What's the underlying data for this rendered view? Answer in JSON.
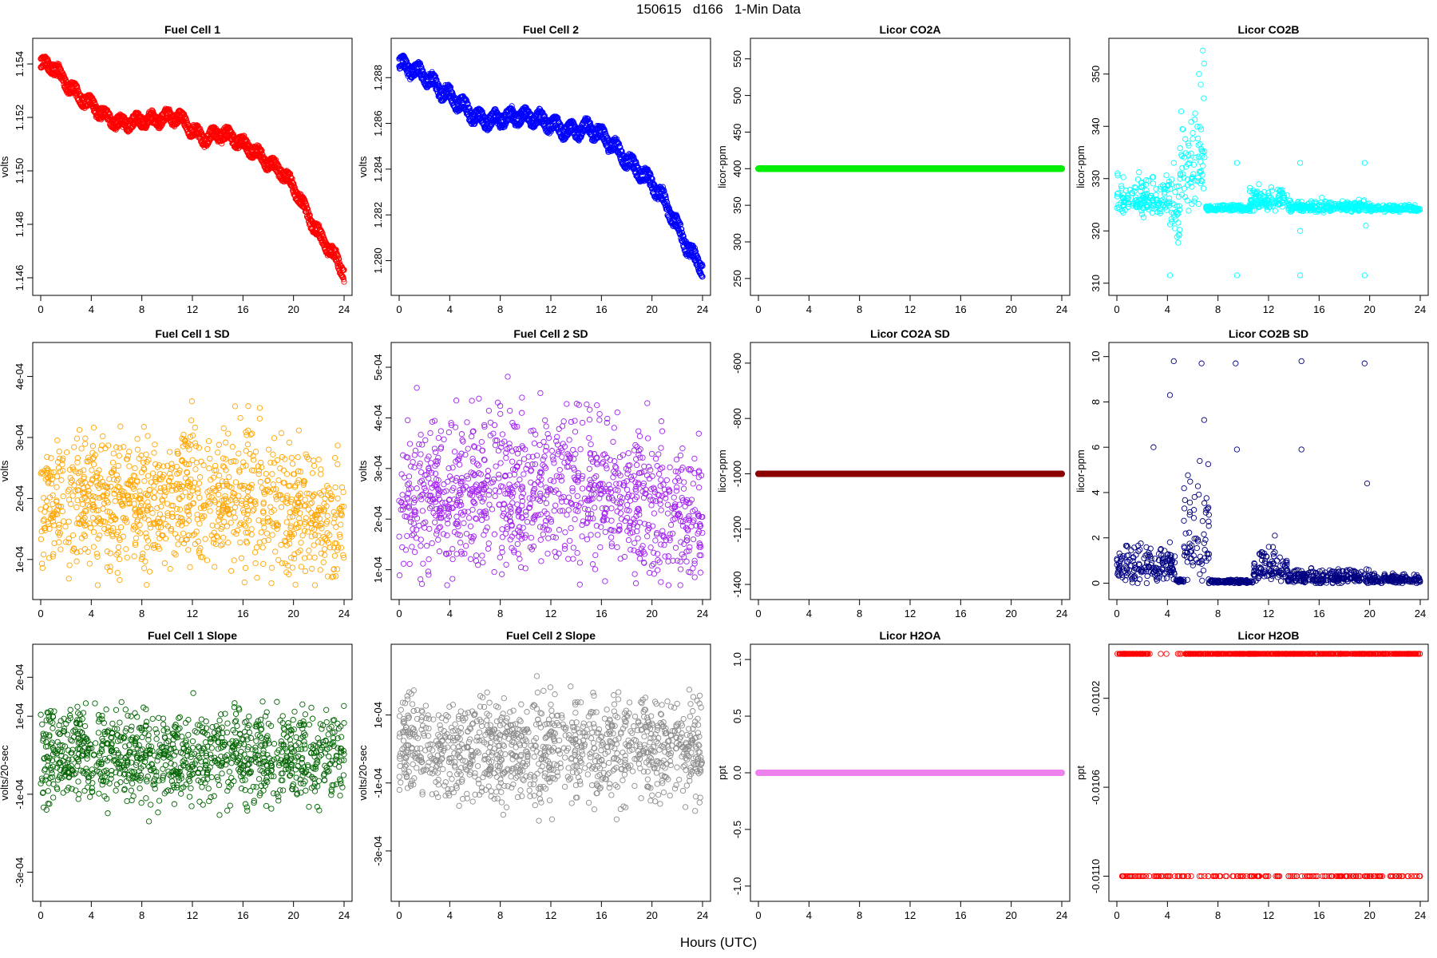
{
  "page_title": "150615   d166   1-Min Data",
  "x_axis_label": "Hours (UTC)",
  "chart_data": [
    {
      "type": "scatter",
      "title": "Fuel Cell 1",
      "ylabel": "volts",
      "xlim": [
        0,
        24
      ],
      "ylim": [
        1.1457,
        1.1546
      ],
      "yticks": [
        1.146,
        1.148,
        1.15,
        1.152,
        1.154
      ],
      "ytick_labels": [
        "1.146",
        "1.148",
        "1.150",
        "1.152",
        "1.154"
      ],
      "xticks": [
        0,
        4,
        8,
        12,
        16,
        20,
        24
      ],
      "color": "#ff0000",
      "filled": false,
      "band": true,
      "band_offset": 0.0003,
      "curve": [
        [
          0,
          1.154
        ],
        [
          1,
          1.1539
        ],
        [
          2,
          1.1533
        ],
        [
          3,
          1.1528
        ],
        [
          4,
          1.1525
        ],
        [
          5,
          1.1521
        ],
        [
          6,
          1.1518
        ],
        [
          7,
          1.1518
        ],
        [
          8,
          1.1519
        ],
        [
          9,
          1.1519
        ],
        [
          10,
          1.152
        ],
        [
          11,
          1.152
        ],
        [
          12,
          1.1515
        ],
        [
          13,
          1.1512
        ],
        [
          14,
          1.1514
        ],
        [
          15,
          1.1513
        ],
        [
          16,
          1.151
        ],
        [
          17,
          1.1507
        ],
        [
          18,
          1.1503
        ],
        [
          19,
          1.15
        ],
        [
          20,
          1.1494
        ],
        [
          21,
          1.1485
        ],
        [
          22,
          1.1476
        ],
        [
          23,
          1.147
        ],
        [
          24,
          1.1462
        ]
      ],
      "noise": 0.00015,
      "n": 720
    },
    {
      "type": "scatter",
      "title": "Fuel Cell 2",
      "ylabel": "volts",
      "xlim": [
        0,
        24
      ],
      "ylim": [
        1.2789,
        1.2893
      ],
      "yticks": [
        1.28,
        1.282,
        1.284,
        1.286,
        1.288
      ],
      "ytick_labels": [
        "1.280",
        "1.282",
        "1.284",
        "1.286",
        "1.288"
      ],
      "xticks": [
        0,
        4,
        8,
        12,
        16,
        20,
        24
      ],
      "color": "#0000ff",
      "filled": false,
      "band": true,
      "band_offset": 0.0004,
      "curve": [
        [
          0,
          1.2886
        ],
        [
          1,
          1.2884
        ],
        [
          2,
          1.2881
        ],
        [
          3,
          1.2876
        ],
        [
          4,
          1.2872
        ],
        [
          5,
          1.2868
        ],
        [
          6,
          1.2863
        ],
        [
          7,
          1.2861
        ],
        [
          8,
          1.2862
        ],
        [
          9,
          1.2863
        ],
        [
          10,
          1.2863
        ],
        [
          11,
          1.2862
        ],
        [
          12,
          1.286
        ],
        [
          13,
          1.2857
        ],
        [
          14,
          1.2857
        ],
        [
          15,
          1.2858
        ],
        [
          16,
          1.2855
        ],
        [
          17,
          1.285
        ],
        [
          18,
          1.2844
        ],
        [
          19,
          1.2839
        ],
        [
          20,
          1.2834
        ],
        [
          21,
          1.2826
        ],
        [
          22,
          1.2815
        ],
        [
          23,
          1.2804
        ],
        [
          24,
          1.2797
        ]
      ],
      "noise": 0.0002,
      "n": 720
    },
    {
      "type": "scatter",
      "title": "Licor CO2A",
      "ylabel": "licor-ppm",
      "xlim": [
        0,
        24
      ],
      "ylim": [
        240,
        565
      ],
      "yticks": [
        250,
        300,
        350,
        400,
        450,
        500,
        550
      ],
      "ytick_labels": [
        "250",
        "300",
        "350",
        "400",
        "450",
        "500",
        "550"
      ],
      "xticks": [
        0,
        4,
        8,
        12,
        16,
        20,
        24
      ],
      "color": "#00ee00",
      "constant": 400,
      "n": 1440
    },
    {
      "type": "scatter",
      "title": "Licor CO2B",
      "ylabel": "licor-ppm",
      "xlim": [
        0,
        24
      ],
      "ylim": [
        309.5,
        355
      ],
      "yticks": [
        310,
        320,
        330,
        340,
        350
      ],
      "ytick_labels": [
        "310",
        "320",
        "330",
        "340",
        "350"
      ],
      "xticks": [
        0,
        4,
        8,
        12,
        16,
        20,
        24
      ],
      "color": "#00ffff",
      "filled": false,
      "segments": [
        {
          "x0": 0,
          "x1": 4.2,
          "y": 326,
          "noise": 2.2
        },
        {
          "x0": 4.2,
          "x1": 5,
          "y": 324,
          "noise": 4
        },
        {
          "x0": 5,
          "x1": 7,
          "y": 332,
          "noise": 6
        },
        {
          "x0": 7,
          "x1": 10.5,
          "y": 324.3,
          "noise": 0.4
        },
        {
          "x0": 10.5,
          "x1": 13.5,
          "y": 325.5,
          "noise": 1.3
        },
        {
          "x0": 13.5,
          "x1": 20,
          "y": 324.5,
          "noise": 0.7
        },
        {
          "x0": 20,
          "x1": 24,
          "y": 324.2,
          "noise": 0.4
        }
      ],
      "extra_points": [
        [
          4.2,
          311.5
        ],
        [
          9.5,
          311.5
        ],
        [
          14.5,
          311.5
        ],
        [
          19.6,
          311.5
        ],
        [
          4.6,
          320.5
        ],
        [
          14.5,
          320
        ],
        [
          19.7,
          321
        ],
        [
          4.5,
          333
        ],
        [
          9.5,
          333
        ],
        [
          14.5,
          333
        ],
        [
          19.6,
          333
        ],
        [
          6.8,
          354.5
        ],
        [
          6.5,
          350
        ],
        [
          6.9,
          352
        ]
      ],
      "n": 900
    },
    {
      "type": "scatter",
      "title": "Fuel Cell 1 SD",
      "ylabel": "volts",
      "xlim": [
        0,
        24
      ],
      "ylim": [
        5e-05,
        0.00044
      ],
      "yticks": [
        0.0001,
        0.0002,
        0.0003,
        0.0004
      ],
      "ytick_labels": [
        "1e-04",
        "2e-04",
        "3e-04",
        "4e-04"
      ],
      "xticks": [
        0,
        4,
        8,
        12,
        16,
        20,
        24
      ],
      "color": "#ffa500",
      "filled": false,
      "trend": [
        [
          0,
          0.00019
        ],
        [
          8,
          0.0002
        ],
        [
          14,
          0.00021
        ],
        [
          18,
          0.00019
        ],
        [
          24,
          0.00016
        ]
      ],
      "noise": 5.5e-05,
      "n": 1100
    },
    {
      "type": "scatter",
      "title": "Fuel Cell 2 SD",
      "ylabel": "volts",
      "xlim": [
        0,
        24
      ],
      "ylim": [
        6e-05,
        0.00053
      ],
      "yticks": [
        0.0001,
        0.0002,
        0.0003,
        0.0004,
        0.0005
      ],
      "ytick_labels": [
        "1e-04",
        "2e-04",
        "3e-04",
        "4e-04",
        "5e-04"
      ],
      "xticks": [
        0,
        4,
        8,
        12,
        16,
        20,
        24
      ],
      "color": "#a020f0",
      "filled": false,
      "trend": [
        [
          0,
          0.00024
        ],
        [
          8,
          0.00026
        ],
        [
          14,
          0.00027
        ],
        [
          18,
          0.00024
        ],
        [
          24,
          0.0002
        ]
      ],
      "noise": 7.5e-05,
      "n": 1100
    },
    {
      "type": "scatter",
      "title": "Licor CO2A SD",
      "ylabel": "licor-ppm",
      "xlim": [
        0,
        24
      ],
      "ylim": [
        -1420,
        -560
      ],
      "yticks": [
        -1400,
        -1200,
        -1000,
        -800,
        -600
      ],
      "ytick_labels": [
        "-1400",
        "-1200",
        "-1000",
        "-800",
        "-600"
      ],
      "xticks": [
        0,
        4,
        8,
        12,
        16,
        20,
        24
      ],
      "color": "#8b0000",
      "constant": -1000,
      "n": 1440
    },
    {
      "type": "scatter",
      "title": "Licor CO2B SD",
      "ylabel": "licor-ppm",
      "xlim": [
        0,
        24
      ],
      "ylim": [
        -0.3,
        10.2
      ],
      "yticks": [
        0,
        2,
        4,
        6,
        8,
        10
      ],
      "ytick_labels": [
        "0",
        "2",
        "4",
        "6",
        "8",
        "10"
      ],
      "xticks": [
        0,
        4,
        8,
        12,
        16,
        20,
        24
      ],
      "color": "#000080",
      "filled": false,
      "segments": [
        {
          "x0": 0,
          "x1": 4.6,
          "y": 0.7,
          "noise": 0.5
        },
        {
          "x0": 4.6,
          "x1": 5.3,
          "y": 0.1,
          "noise": 0.05
        },
        {
          "x0": 5.3,
          "x1": 7.3,
          "y": 1.8,
          "noise": 1.6
        },
        {
          "x0": 7.3,
          "x1": 10.8,
          "y": 0.06,
          "noise": 0.05
        },
        {
          "x0": 10.8,
          "x1": 13.5,
          "y": 0.6,
          "noise": 0.45
        },
        {
          "x0": 13.5,
          "x1": 20,
          "y": 0.25,
          "noise": 0.2
        },
        {
          "x0": 20,
          "x1": 24,
          "y": 0.15,
          "noise": 0.12
        }
      ],
      "extra_points": [
        [
          4.5,
          9.8
        ],
        [
          6.7,
          9.7
        ],
        [
          9.4,
          9.7
        ],
        [
          14.6,
          9.8
        ],
        [
          19.6,
          9.7
        ],
        [
          4.2,
          8.3
        ],
        [
          2.9,
          6.0
        ],
        [
          6.9,
          7.2
        ],
        [
          14.6,
          5.9
        ],
        [
          19.8,
          4.4
        ],
        [
          9.5,
          5.9
        ],
        [
          12.5,
          2.1
        ]
      ],
      "n": 900
    },
    {
      "type": "scatter",
      "title": "Fuel Cell 1 Slope",
      "ylabel": "volts/20-sec",
      "xlim": [
        0,
        24
      ],
      "ylim": [
        -0.00035,
        0.00026
      ],
      "yticks": [
        -0.0003,
        -0.0001,
        0.0001,
        0.0002
      ],
      "ytick_labels": [
        "-3e-04",
        "-1e-04",
        "1e-04",
        "2e-04"
      ],
      "xticks": [
        0,
        4,
        8,
        12,
        16,
        20,
        24
      ],
      "color": "#006400",
      "filled": false,
      "trend": [
        [
          0,
          0
        ],
        [
          24,
          0
        ]
      ],
      "noise": 6e-05,
      "n": 1100
    },
    {
      "type": "scatter",
      "title": "Fuel Cell 2 Slope",
      "ylabel": "volts/20-sec",
      "xlim": [
        0,
        24
      ],
      "ylim": [
        -0.00042,
        0.00028
      ],
      "yticks": [
        -0.0003,
        -0.0001,
        0.0001
      ],
      "ytick_labels": [
        "-3e-04",
        "-1e-04",
        "1e-04"
      ],
      "xticks": [
        0,
        4,
        8,
        12,
        16,
        20,
        24
      ],
      "color": "#8c8c8c",
      "filled": false,
      "trend": [
        [
          0,
          0
        ],
        [
          24,
          0
        ]
      ],
      "noise": 8e-05,
      "n": 1100
    },
    {
      "type": "scatter",
      "title": "Licor H2OA",
      "ylabel": "ppt",
      "xlim": [
        0,
        24
      ],
      "ylim": [
        -1.05,
        1.05
      ],
      "yticks": [
        -1.0,
        -0.5,
        0.0,
        0.5,
        1.0
      ],
      "ytick_labels": [
        "-1.0",
        "-0.5",
        "0.0",
        "0.5",
        "1.0"
      ],
      "xticks": [
        0,
        4,
        8,
        12,
        16,
        20,
        24
      ],
      "color": "#ee82ee",
      "constant": 0,
      "n": 1440
    },
    {
      "type": "scatter",
      "title": "Licor H2OB",
      "ylabel": "ppt",
      "xlim": [
        0,
        24
      ],
      "ylim": [
        -0.01107,
        -0.01
      ],
      "yticks": [
        -0.011,
        -0.0106,
        -0.0102
      ],
      "ytick_labels": [
        "-0.0110",
        "-0.0106",
        "-0.0102"
      ],
      "xticks": [
        0,
        4,
        8,
        12,
        16,
        20,
        24
      ],
      "color": "#ff0000",
      "filled": false,
      "levels": [
        -0.01,
        -0.011
      ],
      "level_split": 0.82,
      "n": 900
    }
  ]
}
